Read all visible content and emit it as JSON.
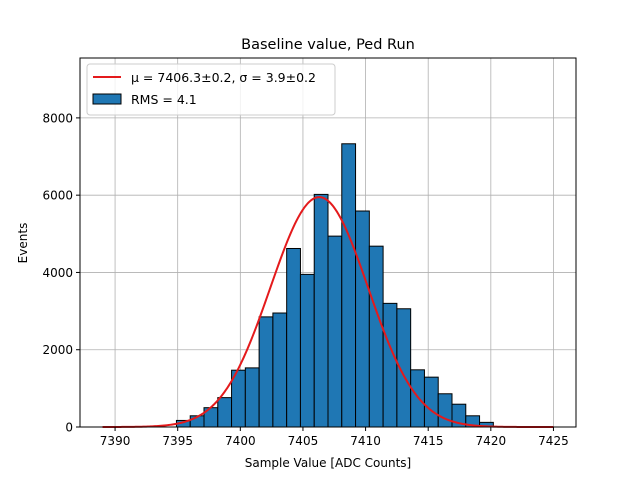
{
  "chart_data": {
    "type": "bar",
    "title": "Baseline value, Ped Run",
    "xlabel": "Sample Value [ADC Counts]",
    "ylabel": "Events",
    "xlim": [
      7387.2,
      7426.8
    ],
    "ylim": [
      0,
      9550
    ],
    "xticks": [
      7390,
      7395,
      7400,
      7405,
      7410,
      7415,
      7420,
      7425
    ],
    "yticks": [
      0,
      2000,
      4000,
      6000,
      8000
    ],
    "grid": true,
    "legend_position": "top-left",
    "colors": {
      "bars": "#1f77b4",
      "bar_edge": "#000000",
      "fit_line": "#e41a1c",
      "grid": "#b0b0b0"
    },
    "histogram": {
      "name": "RMS = 4.1",
      "bins": [
        {
          "x0": 7394.9,
          "x1": 7396.0,
          "count": 170
        },
        {
          "x0": 7396.0,
          "x1": 7397.1,
          "count": 290
        },
        {
          "x0": 7397.1,
          "x1": 7398.2,
          "count": 500
        },
        {
          "x0": 7398.2,
          "x1": 7399.3,
          "count": 760
        },
        {
          "x0": 7399.3,
          "x1": 7400.4,
          "count": 1470
        },
        {
          "x0": 7400.4,
          "x1": 7401.5,
          "count": 1530
        },
        {
          "x0": 7401.5,
          "x1": 7402.6,
          "count": 2850
        },
        {
          "x0": 7402.6,
          "x1": 7403.7,
          "count": 2950
        },
        {
          "x0": 7403.7,
          "x1": 7404.8,
          "count": 4620
        },
        {
          "x0": 7404.8,
          "x1": 7405.9,
          "count": 3950
        },
        {
          "x0": 7405.9,
          "x1": 7407.0,
          "count": 6020
        },
        {
          "x0": 7407.0,
          "x1": 7408.1,
          "count": 4940
        },
        {
          "x0": 7408.1,
          "x1": 7409.2,
          "count": 7330
        },
        {
          "x0": 7409.2,
          "x1": 7410.3,
          "count": 5590
        },
        {
          "x0": 7410.3,
          "x1": 7411.4,
          "count": 4680
        },
        {
          "x0": 7411.4,
          "x1": 7412.5,
          "count": 3200
        },
        {
          "x0": 7412.5,
          "x1": 7413.6,
          "count": 3060
        },
        {
          "x0": 7413.6,
          "x1": 7414.7,
          "count": 1480
        },
        {
          "x0": 7414.7,
          "x1": 7415.8,
          "count": 1290
        },
        {
          "x0": 7415.8,
          "x1": 7416.9,
          "count": 860
        },
        {
          "x0": 7416.9,
          "x1": 7418.0,
          "count": 590
        },
        {
          "x0": 7418.0,
          "x1": 7419.1,
          "count": 290
        },
        {
          "x0": 7419.1,
          "x1": 7420.2,
          "count": 120
        }
      ]
    },
    "fit": {
      "type": "gaussian",
      "name": "μ = 7406.3±0.2, σ = 3.9±0.2",
      "mu": 7406.3,
      "sigma": 3.9,
      "amplitude": 5950,
      "x_range": [
        7389,
        7425
      ]
    }
  }
}
